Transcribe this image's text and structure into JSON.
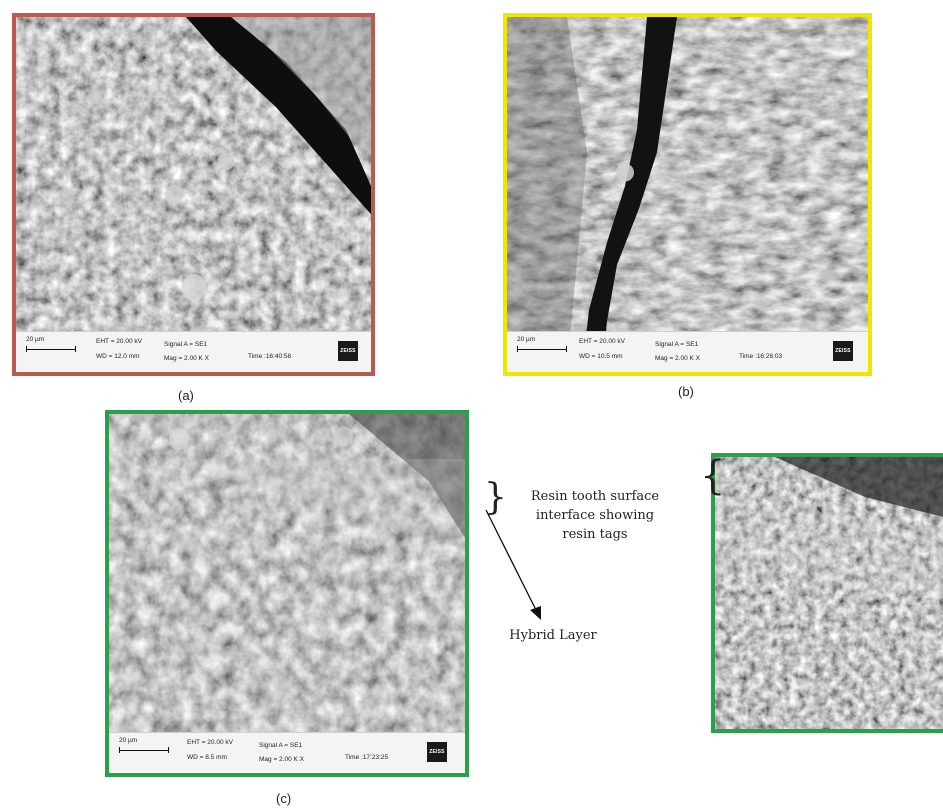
{
  "panels": [
    {
      "id": "a",
      "caption": "(a)",
      "border_color": "#b85c4f",
      "scale_label": "20 µm",
      "eht": "EHT = 20.00 kV",
      "wd": "WD = 12.0 mm",
      "signal": "Signal A = SE1",
      "mag": "Mag =   2.00 K X",
      "time": "Time :16:40:58",
      "logo": "ZEISS"
    },
    {
      "id": "b",
      "caption": "(b)",
      "border_color": "#f2e600",
      "scale_label": "20 µm",
      "eht": "EHT = 20.00 kV",
      "wd": "WD = 10.5 mm",
      "signal": "Signal A = SE1",
      "mag": "Mag =   2.00 K X",
      "time": "Time :16:26:03",
      "logo": "ZEISS"
    },
    {
      "id": "c",
      "caption": "(c)",
      "border_color": "#2aa04a",
      "scale_label": "20 µm",
      "eht": "EHT = 20.00 kV",
      "wd": "WD = 8.5 mm",
      "signal": "Signal A = SE1",
      "mag": "Mag =   2.00 K X",
      "time": "Time :17:23:25",
      "logo": "ZEISS"
    },
    {
      "id": "zoom",
      "border_color": "#2aa04a"
    }
  ],
  "annotations": {
    "resin_interface": [
      "Resin tooth surface",
      "interface showing",
      "resin tags"
    ],
    "hybrid_layer": "Hybrid Layer"
  }
}
